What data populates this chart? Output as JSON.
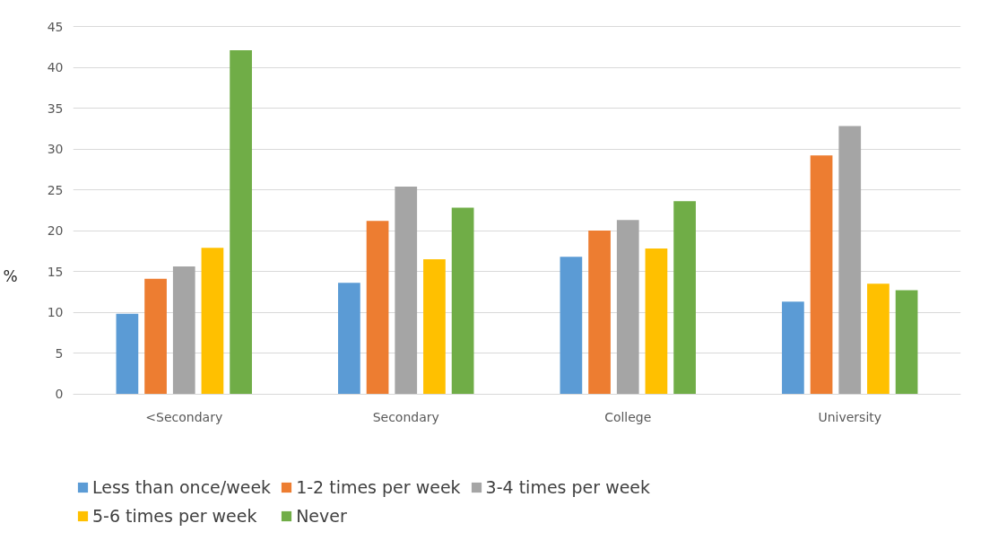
{
  "chart_data": {
    "type": "bar",
    "ylabel": "%",
    "categories": [
      "<Secondary",
      "Secondary",
      "College",
      "University"
    ],
    "series": [
      {
        "name": "Less than once/week",
        "color": "#5b9bd5",
        "values": [
          9.8,
          13.6,
          16.8,
          11.3
        ]
      },
      {
        "name": "1-2 times per week",
        "color": "#ed7d31",
        "values": [
          14.1,
          21.2,
          20.0,
          29.2
        ]
      },
      {
        "name": "3-4 times per week",
        "color": "#a5a5a5",
        "values": [
          15.6,
          25.4,
          21.3,
          32.8
        ]
      },
      {
        "name": "5-6 times per week",
        "color": "#ffc000",
        "values": [
          17.9,
          16.5,
          17.8,
          13.5
        ]
      },
      {
        "name": "Never",
        "color": "#70ad47",
        "values": [
          42.1,
          22.8,
          23.6,
          12.7
        ]
      }
    ],
    "ylim": [
      0,
      45
    ],
    "yticks": [
      0,
      5,
      10,
      15,
      20,
      25,
      30,
      35,
      40,
      45
    ],
    "grid": "y",
    "legend": "bottom"
  }
}
